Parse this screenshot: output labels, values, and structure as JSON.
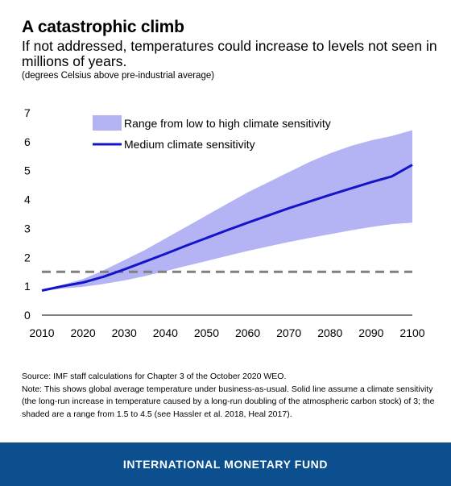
{
  "header": {
    "title": "A catastrophic climb",
    "subtitle": "If not addressed, temperatures could increase to levels not seen in millions of years.",
    "units": "(degrees Celsius above pre-industrial average)"
  },
  "notes": {
    "source": "Source: IMF staff calculations for Chapter 3 of the October 2020 WEO.",
    "note": "Note: This shows global average temperature under business-as-usual.  Solid line assume a climate sensitivity (the long-run increase in temperature caused by a long-run doubling of the atmospheric carbon stock) of 3; the shaded are a range from 1.5 to 4.5 (see Hassler et al. 2018, Heal 2017)."
  },
  "footer": {
    "label": "INTERNATIONAL MONETARY FUND"
  },
  "chart_data": {
    "type": "line",
    "x": [
      2010,
      2015,
      2020,
      2025,
      2030,
      2035,
      2040,
      2045,
      2050,
      2055,
      2060,
      2065,
      2070,
      2075,
      2080,
      2085,
      2090,
      2095,
      2100
    ],
    "series": [
      {
        "name": "Medium climate sensitivity",
        "values": [
          0.85,
          1.0,
          1.13,
          1.33,
          1.58,
          1.85,
          2.12,
          2.4,
          2.67,
          2.94,
          3.2,
          3.45,
          3.7,
          3.93,
          4.16,
          4.38,
          4.6,
          4.8,
          5.2
        ]
      }
    ],
    "band": {
      "name": "Range from low to high climate sensitivity",
      "low": [
        0.85,
        0.92,
        0.98,
        1.08,
        1.2,
        1.35,
        1.52,
        1.7,
        1.87,
        2.05,
        2.22,
        2.38,
        2.53,
        2.67,
        2.8,
        2.93,
        3.05,
        3.15,
        3.2
      ],
      "high": [
        0.85,
        1.05,
        1.25,
        1.55,
        1.9,
        2.25,
        2.65,
        3.05,
        3.45,
        3.85,
        4.25,
        4.6,
        4.95,
        5.3,
        5.6,
        5.85,
        6.05,
        6.2,
        6.4
      ]
    },
    "reference_line": {
      "y": 1.5,
      "style": "dashed"
    },
    "xlim": [
      2010,
      2100
    ],
    "ylim": [
      0,
      7
    ],
    "xticks": [
      2010,
      2020,
      2030,
      2040,
      2050,
      2060,
      2070,
      2080,
      2090,
      2100
    ],
    "yticks": [
      0,
      1,
      2,
      3,
      4,
      5,
      6,
      7
    ],
    "grid": false,
    "legend_position": "top-left",
    "colors": {
      "line": "#1414c8",
      "band": "#b4b4f5",
      "reference": "#808080"
    }
  }
}
